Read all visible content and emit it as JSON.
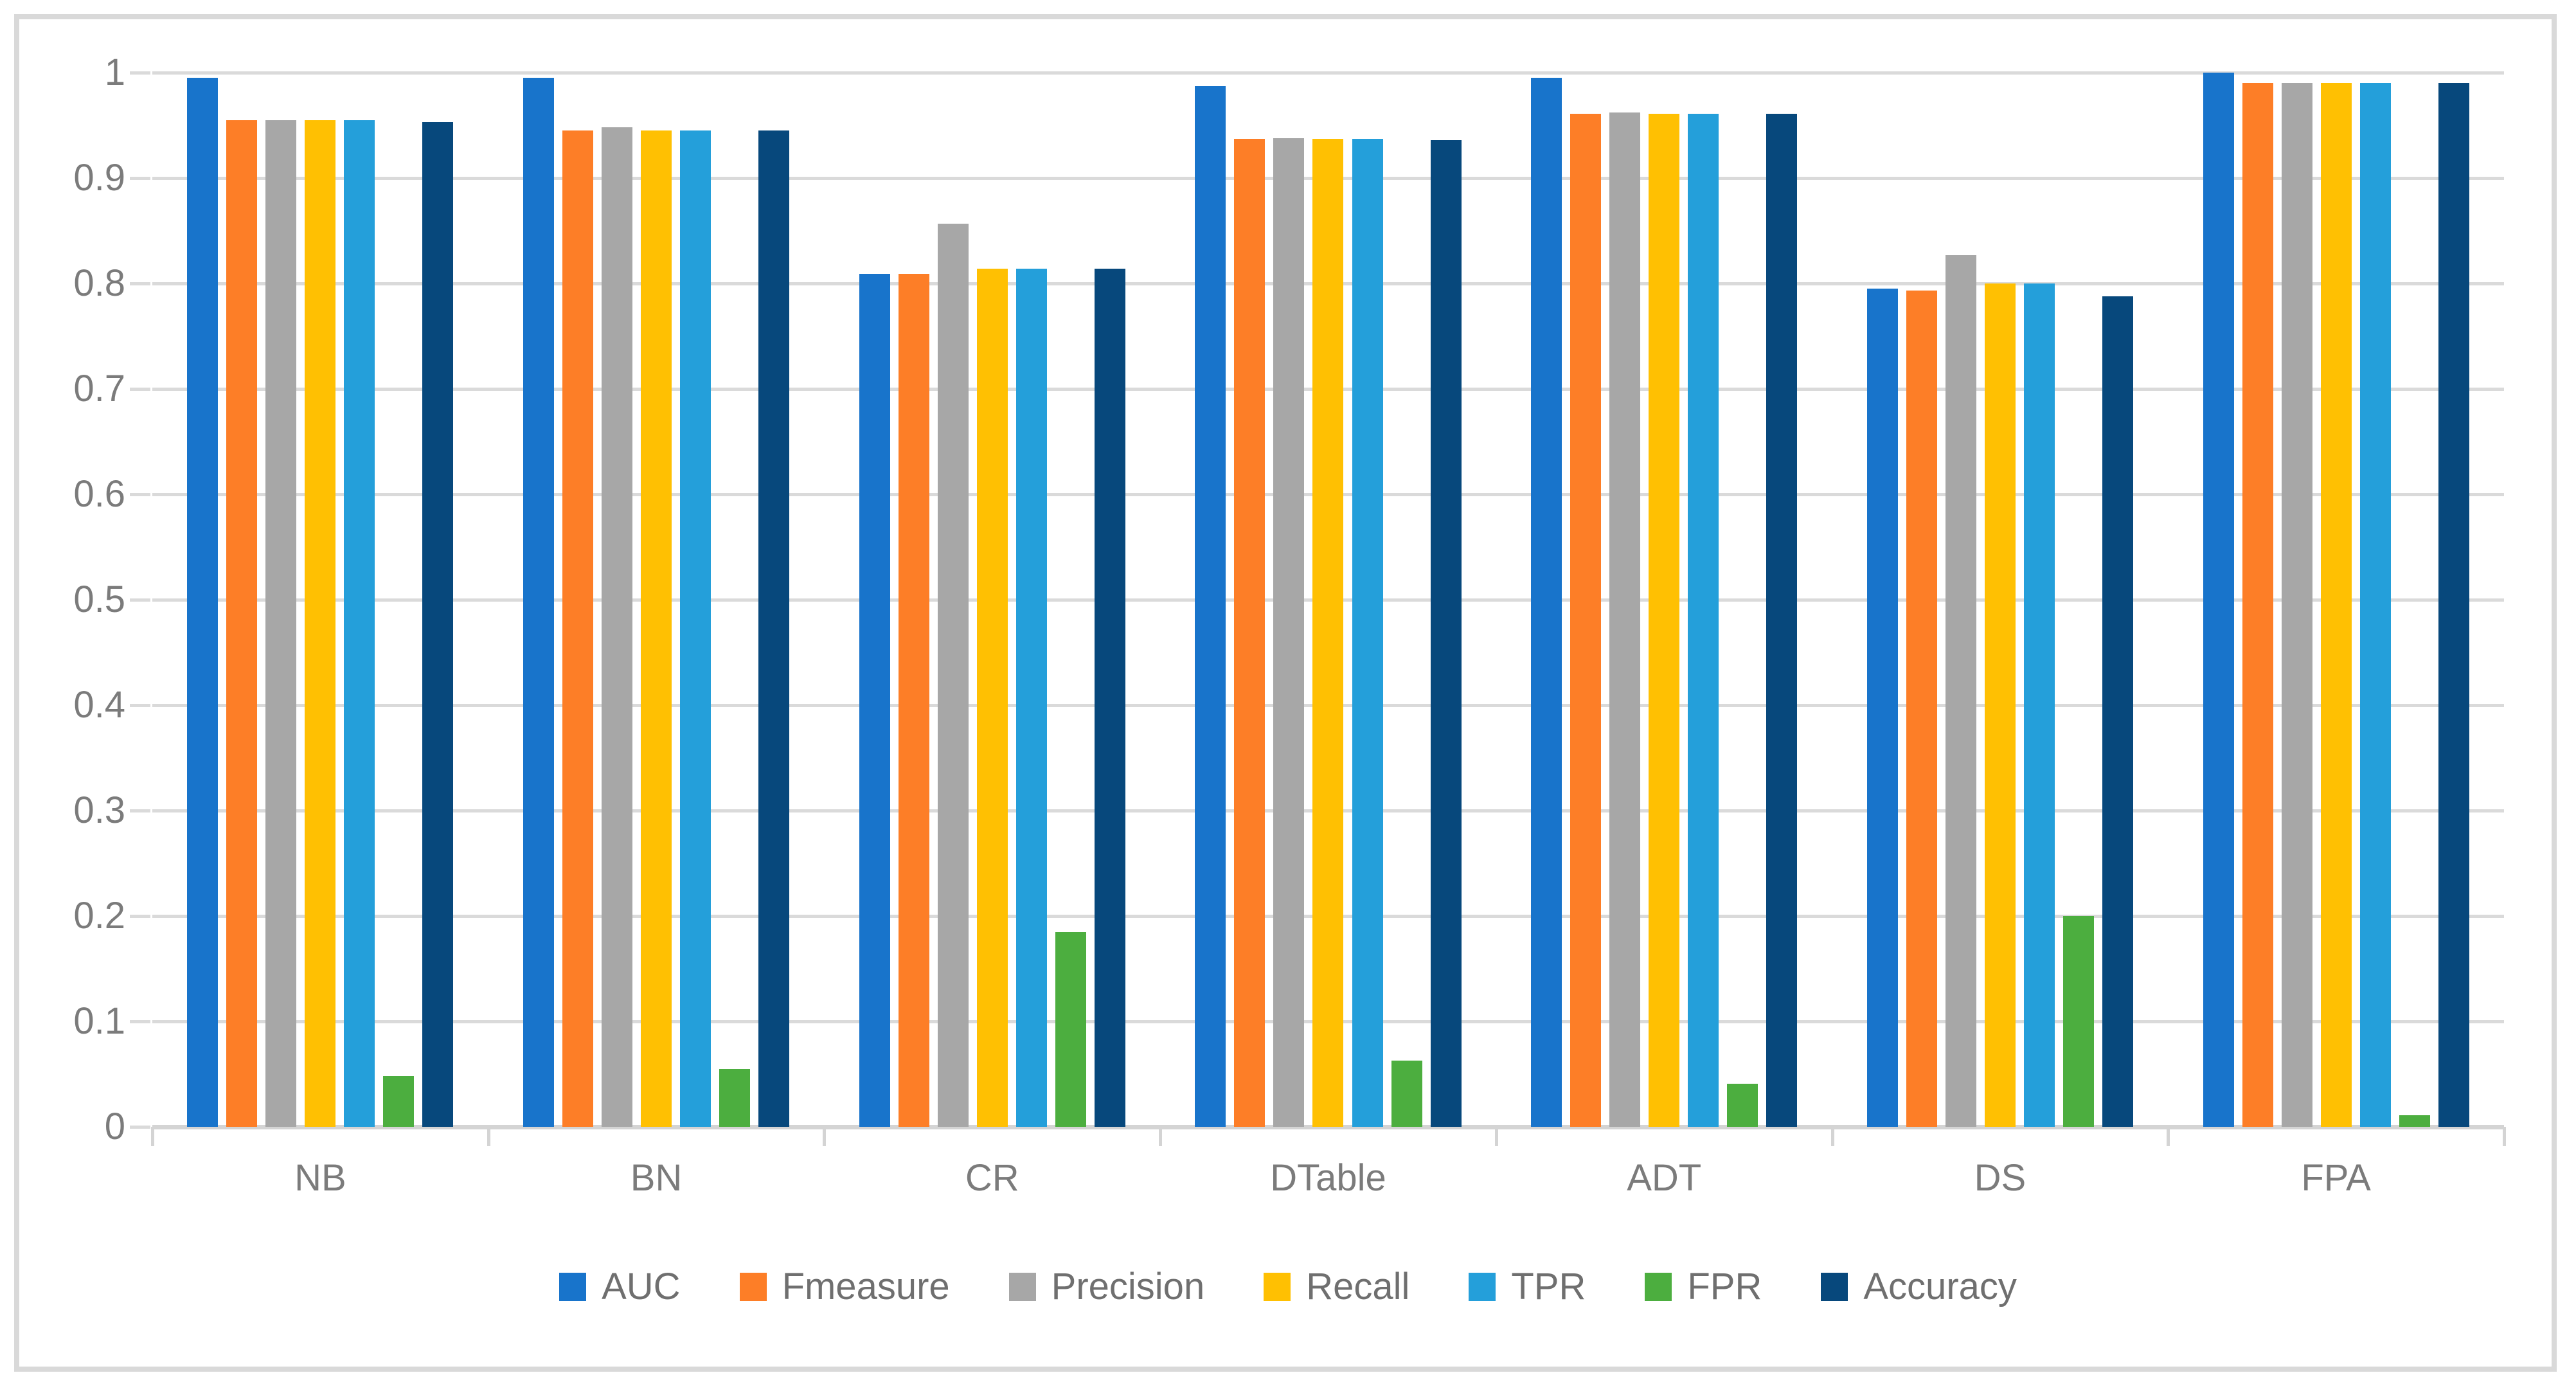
{
  "chart_data": {
    "type": "bar",
    "title": "",
    "xlabel": "",
    "ylabel": "",
    "categories": [
      "NB",
      "BN",
      "CR",
      "DTable",
      "ADT",
      "DS",
      "FPA"
    ],
    "series": [
      {
        "name": "AUC",
        "color": "#1874cb",
        "values": [
          0.995,
          0.995,
          0.809,
          0.987,
          0.995,
          0.795,
          1.0
        ]
      },
      {
        "name": "Fmeasure",
        "color": "#fd7e27",
        "values": [
          0.955,
          0.945,
          0.809,
          0.937,
          0.961,
          0.793,
          0.99
        ]
      },
      {
        "name": "Precision",
        "color": "#a7a7a7",
        "values": [
          0.955,
          0.948,
          0.857,
          0.938,
          0.962,
          0.827,
          0.99
        ]
      },
      {
        "name": "Recall",
        "color": "#ffc002",
        "values": [
          0.955,
          0.945,
          0.814,
          0.937,
          0.961,
          0.8,
          0.99
        ]
      },
      {
        "name": "TPR",
        "color": "#249fda",
        "values": [
          0.955,
          0.945,
          0.814,
          0.937,
          0.961,
          0.8,
          0.99
        ]
      },
      {
        "name": "FPR",
        "color": "#4cae3f",
        "values": [
          0.048,
          0.055,
          0.185,
          0.063,
          0.041,
          0.2,
          0.011
        ]
      },
      {
        "name": "Accuracy",
        "color": "#07487c",
        "values": [
          0.953,
          0.945,
          0.814,
          0.936,
          0.961,
          0.788,
          0.99
        ]
      }
    ],
    "y_ticks": [
      "1",
      "0.9",
      "0.8",
      "0.7",
      "0.6",
      "0.5",
      "0.4",
      "0.3",
      "0.2",
      "0.1",
      "0"
    ],
    "ylim": [
      0,
      1
    ],
    "grid": true,
    "legend_position": "bottom",
    "legend_entries": [
      "AUC",
      "Fmeasure",
      "Precision",
      "Recall",
      "TPR",
      "FPR",
      "Accuracy"
    ]
  },
  "frame": {
    "border_color": "#d9d9d9",
    "background": "#ffffff"
  }
}
